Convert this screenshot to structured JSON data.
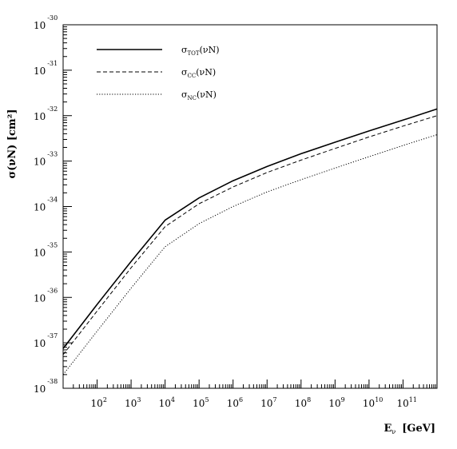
{
  "chart_data": {
    "type": "line",
    "title": "",
    "xlabel": "E",
    "xlabel_sub": "ν",
    "xlabel_unit": "[GeV]",
    "ylabel": "σ(νN) [cm²]",
    "xscale": "log",
    "yscale": "log",
    "xlim": [
      10,
      1000000000000
    ],
    "ylim": [
      1e-38,
      1e-30
    ],
    "grid": false,
    "legend": "top-left",
    "x_ticks": [
      {
        "exp": "2"
      },
      {
        "exp": "3"
      },
      {
        "exp": "4"
      },
      {
        "exp": "5"
      },
      {
        "exp": "6"
      },
      {
        "exp": "7"
      },
      {
        "exp": "8"
      },
      {
        "exp": "9"
      },
      {
        "exp": "10"
      },
      {
        "exp": "11"
      }
    ],
    "y_ticks": [
      {
        "exp": "-30"
      },
      {
        "exp": "-31"
      },
      {
        "exp": "-32"
      },
      {
        "exp": "-33"
      },
      {
        "exp": "-34"
      },
      {
        "exp": "-35"
      },
      {
        "exp": "-36"
      },
      {
        "exp": "-37"
      },
      {
        "exp": "-38"
      }
    ],
    "series": [
      {
        "name": "σTOT(νN)",
        "base": "σ",
        "sub": "TOT",
        "suffix": "(νN)",
        "style": "solid",
        "x": [
          10,
          100,
          1000,
          10000,
          100000,
          1000000,
          10000000,
          100000000,
          1000000000,
          10000000000,
          100000000000,
          1000000000000
        ],
        "y": [
          7.5e-38,
          7e-37,
          6.2e-36,
          5e-35,
          1.55e-34,
          3.7e-34,
          7.6e-34,
          1.45e-33,
          2.6e-33,
          4.6e-33,
          8e-33,
          1.4e-32
        ]
      },
      {
        "name": "σCC(νN)",
        "base": "σ",
        "sub": "CC",
        "suffix": "(νN)",
        "style": "dashed",
        "x": [
          10,
          100,
          1000,
          10000,
          100000,
          1000000,
          10000000,
          100000000,
          1000000000,
          10000000000,
          100000000000,
          1000000000000
        ],
        "y": [
          5.5e-38,
          5e-37,
          4.5e-36,
          3.6e-35,
          1.15e-34,
          2.7e-34,
          5.6e-34,
          1.05e-33,
          1.9e-33,
          3.4e-33,
          5.9e-33,
          1e-32
        ]
      },
      {
        "name": "σNC(νN)",
        "base": "σ",
        "sub": "NC",
        "suffix": "(νN)",
        "style": "dotted",
        "x": [
          10,
          100,
          1000,
          10000,
          100000,
          1000000,
          10000000,
          100000000,
          1000000000,
          10000000000,
          100000000000,
          1000000000000
        ],
        "y": [
          2e-38,
          1.8e-37,
          1.6e-36,
          1.3e-35,
          4.2e-35,
          1e-34,
          2.1e-34,
          3.9e-34,
          7e-34,
          1.25e-33,
          2.2e-33,
          3.8e-33
        ]
      }
    ]
  }
}
